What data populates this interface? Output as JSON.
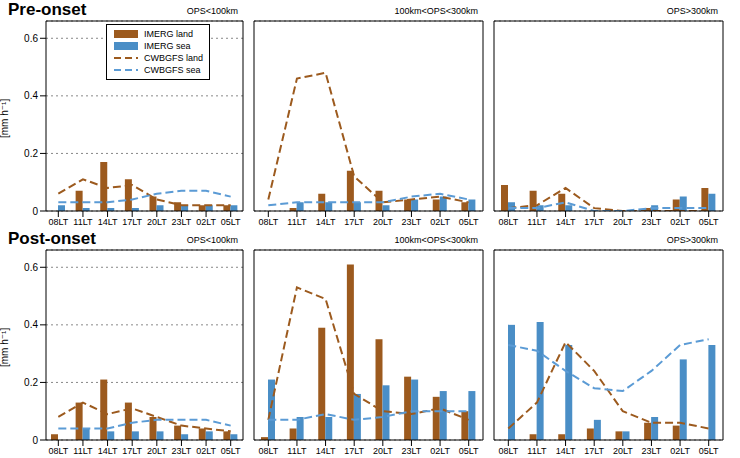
{
  "chart_data": [
    {
      "type": "bar",
      "subtitle": "Pre-onset",
      "title": "OPS<100km",
      "ylabel": "[mm h⁻¹]",
      "legend": "upper right",
      "grid": true,
      "categories": [
        "08LT",
        "11LT",
        "14LT",
        "17LT",
        "20LT",
        "23LT",
        "02LT",
        "05LT"
      ],
      "ylim": [
        0,
        0.66
      ],
      "yticks": [
        0,
        0.2,
        0.4,
        0.6
      ],
      "series": [
        {
          "name": "IMERG land",
          "type": "bar",
          "color": "#9c5a1e",
          "values": [
            0.0,
            0.07,
            0.17,
            0.11,
            0.05,
            0.03,
            0.02,
            0.02
          ]
        },
        {
          "name": "IMERG sea",
          "type": "bar",
          "color": "#4a8ec6",
          "values": [
            0.02,
            0.01,
            0.01,
            0.01,
            0.02,
            0.02,
            0.02,
            0.02
          ]
        },
        {
          "name": "CWBGFS land",
          "type": "line",
          "line_style": "dashed",
          "color": "#9c5a1e",
          "values": [
            0.06,
            0.11,
            0.08,
            0.09,
            0.04,
            0.02,
            0.02,
            0.02
          ]
        },
        {
          "name": "CWBGFS sea",
          "type": "line",
          "line_style": "dashed",
          "color": "#5b9bd5",
          "values": [
            0.03,
            0.03,
            0.03,
            0.04,
            0.06,
            0.07,
            0.07,
            0.05
          ]
        }
      ]
    },
    {
      "type": "bar",
      "title": "100km<OPS<300km",
      "tick_labels": "x",
      "grid": true,
      "categories": [
        "08LT",
        "11LT",
        "14LT",
        "17LT",
        "20LT",
        "23LT",
        "02LT",
        "05LT"
      ],
      "ylim": [
        0,
        0.66
      ],
      "yticks": [
        0,
        0.2,
        0.4,
        0.6
      ],
      "series": [
        {
          "name": "IMERG land",
          "type": "bar",
          "color": "#9c5a1e",
          "values": [
            0.0,
            0.01,
            0.06,
            0.14,
            0.07,
            0.04,
            0.04,
            0.03
          ]
        },
        {
          "name": "IMERG sea",
          "type": "bar",
          "color": "#4a8ec6",
          "values": [
            0.0,
            0.03,
            0.03,
            0.03,
            0.02,
            0.04,
            0.05,
            0.04
          ]
        },
        {
          "name": "CWBGFS land",
          "type": "line",
          "line_style": "dashed",
          "color": "#9c5a1e",
          "values": [
            0.04,
            0.46,
            0.48,
            0.12,
            0.03,
            0.04,
            0.05,
            0.03
          ]
        },
        {
          "name": "CWBGFS sea",
          "type": "line",
          "line_style": "dashed",
          "color": "#5b9bd5",
          "values": [
            0.02,
            0.03,
            0.03,
            0.03,
            0.03,
            0.05,
            0.06,
            0.04
          ]
        }
      ]
    },
    {
      "type": "bar",
      "title": "OPS>300km",
      "tick_labels": "x",
      "grid": true,
      "categories": [
        "08LT",
        "11LT",
        "14LT",
        "17LT",
        "20LT",
        "23LT",
        "02LT",
        "05LT"
      ],
      "ylim": [
        0,
        0.66
      ],
      "yticks": [
        0,
        0.2,
        0.4,
        0.6
      ],
      "series": [
        {
          "name": "IMERG land",
          "type": "bar",
          "color": "#9c5a1e",
          "values": [
            0.09,
            0.07,
            0.06,
            0.0,
            0.0,
            0.01,
            0.04,
            0.08
          ]
        },
        {
          "name": "IMERG sea",
          "type": "bar",
          "color": "#4a8ec6",
          "values": [
            0.03,
            0.02,
            0.02,
            0.0,
            0.0,
            0.02,
            0.05,
            0.06
          ]
        },
        {
          "name": "CWBGFS land",
          "type": "line",
          "line_style": "dashed",
          "color": "#9c5a1e",
          "values": [
            0.01,
            0.02,
            0.08,
            0.01,
            0.0,
            0.0,
            0.0,
            0.0
          ]
        },
        {
          "name": "CWBGFS sea",
          "type": "line",
          "line_style": "dashed",
          "color": "#5b9bd5",
          "values": [
            0.01,
            0.01,
            0.03,
            0.0,
            0.0,
            0.01,
            0.01,
            0.01
          ]
        }
      ]
    },
    {
      "type": "bar",
      "subtitle": "Post-onset",
      "title": "OPS<100km",
      "ylabel": "[mm h⁻¹]",
      "grid": true,
      "categories": [
        "08LT",
        "11LT",
        "14LT",
        "17LT",
        "20LT",
        "23LT",
        "02LT",
        "05LT"
      ],
      "ylim": [
        0,
        0.66
      ],
      "yticks": [
        0,
        0.2,
        0.4,
        0.6
      ],
      "series": [
        {
          "name": "IMERG land",
          "type": "bar",
          "color": "#9c5a1e",
          "values": [
            0.02,
            0.13,
            0.21,
            0.13,
            0.08,
            0.05,
            0.04,
            0.03
          ]
        },
        {
          "name": "IMERG sea",
          "type": "bar",
          "color": "#4a8ec6",
          "values": [
            0.0,
            0.04,
            0.03,
            0.03,
            0.03,
            0.02,
            0.03,
            0.02
          ]
        },
        {
          "name": "CWBGFS land",
          "type": "line",
          "line_style": "dashed",
          "color": "#9c5a1e",
          "values": [
            0.08,
            0.13,
            0.09,
            0.11,
            0.08,
            0.05,
            0.04,
            0.03
          ]
        },
        {
          "name": "CWBGFS sea",
          "type": "line",
          "line_style": "dashed",
          "color": "#5b9bd5",
          "values": [
            0.04,
            0.04,
            0.04,
            0.06,
            0.07,
            0.07,
            0.07,
            0.05
          ]
        }
      ]
    },
    {
      "type": "bar",
      "title": "100km<OPS<300km",
      "tick_labels": "x",
      "grid": true,
      "categories": [
        "08LT",
        "11LT",
        "14LT",
        "17LT",
        "20LT",
        "23LT",
        "02LT",
        "05LT"
      ],
      "ylim": [
        0,
        0.66
      ],
      "yticks": [
        0,
        0.2,
        0.4,
        0.6
      ],
      "series": [
        {
          "name": "IMERG land",
          "type": "bar",
          "color": "#9c5a1e",
          "values": [
            0.01,
            0.04,
            0.39,
            0.61,
            0.35,
            0.22,
            0.15,
            0.1
          ]
        },
        {
          "name": "IMERG sea",
          "type": "bar",
          "color": "#4a8ec6",
          "values": [
            0.21,
            0.08,
            0.08,
            0.16,
            0.19,
            0.21,
            0.17,
            0.17
          ]
        },
        {
          "name": "CWBGFS land",
          "type": "line",
          "line_style": "dashed",
          "color": "#9c5a1e",
          "values": [
            0.07,
            0.53,
            0.49,
            0.16,
            0.1,
            0.09,
            0.11,
            0.07
          ]
        },
        {
          "name": "CWBGFS sea",
          "type": "line",
          "line_style": "dashed",
          "color": "#5b9bd5",
          "values": [
            0.07,
            0.07,
            0.09,
            0.07,
            0.08,
            0.1,
            0.1,
            0.1
          ]
        }
      ]
    },
    {
      "type": "bar",
      "title": "OPS>300km",
      "tick_labels": "x",
      "grid": true,
      "categories": [
        "08LT",
        "11LT",
        "14LT",
        "17LT",
        "20LT",
        "23LT",
        "02LT",
        "05LT"
      ],
      "ylim": [
        0,
        0.66
      ],
      "yticks": [
        0,
        0.2,
        0.4,
        0.6
      ],
      "series": [
        {
          "name": "IMERG land",
          "type": "bar",
          "color": "#9c5a1e",
          "values": [
            0.0,
            0.02,
            0.02,
            0.04,
            0.03,
            0.06,
            0.05,
            0.0
          ]
        },
        {
          "name": "IMERG sea",
          "type": "bar",
          "color": "#4a8ec6",
          "values": [
            0.4,
            0.41,
            0.33,
            0.07,
            0.03,
            0.08,
            0.28,
            0.33
          ]
        },
        {
          "name": "CWBGFS land",
          "type": "line",
          "line_style": "dashed",
          "color": "#9c5a1e",
          "values": [
            0.04,
            0.13,
            0.34,
            0.24,
            0.1,
            0.06,
            0.06,
            0.04
          ]
        },
        {
          "name": "CWBGFS sea",
          "type": "line",
          "line_style": "dashed",
          "color": "#5b9bd5",
          "values": [
            0.33,
            0.31,
            0.24,
            0.18,
            0.17,
            0.24,
            0.33,
            0.35
          ]
        }
      ]
    }
  ]
}
